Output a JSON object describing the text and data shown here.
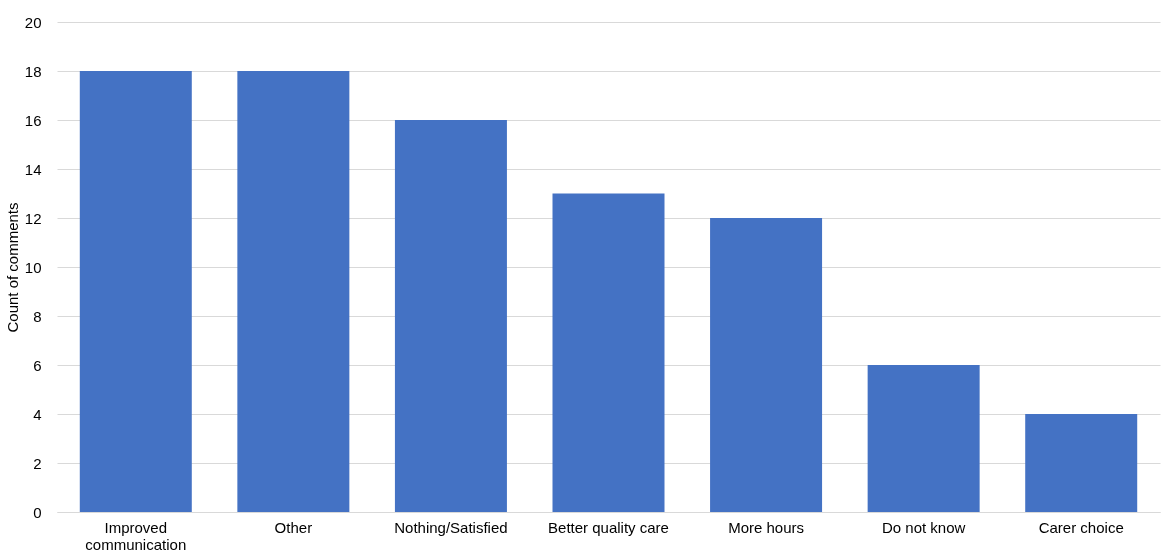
{
  "chart_data": {
    "type": "bar",
    "ylabel": "Count of comments",
    "categories": [
      "Improved communication",
      "Other",
      "Nothing/Satisfied",
      "Better quality care",
      "More hours",
      "Do not know",
      "Carer choice"
    ],
    "values": [
      18,
      18,
      16,
      13,
      12,
      6,
      4
    ],
    "color": "#4472c4",
    "ylim": [
      0,
      20
    ],
    "yticks": [
      0,
      2,
      4,
      6,
      8,
      10,
      12,
      14,
      16,
      18,
      20
    ],
    "grid": "y"
  }
}
